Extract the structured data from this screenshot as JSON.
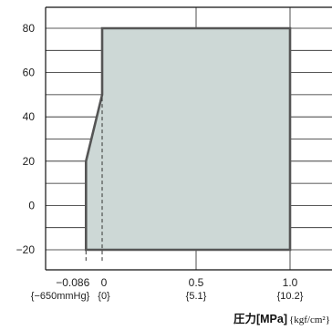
{
  "chart_data": {
    "type": "area",
    "title": "",
    "xlabel": "",
    "ylabel": "",
    "x_axis_label": {
      "main": "圧力[MPa]",
      "unit": "{kgf/cm²}"
    },
    "xlim": [
      -0.1,
      1.1
    ],
    "ylim": [
      -25,
      85
    ],
    "grid": true,
    "legend": "none",
    "y_ticks": [
      {
        "value": -20,
        "label": "−20"
      },
      {
        "value": 0,
        "label": "0"
      },
      {
        "value": 20,
        "label": "20"
      },
      {
        "value": 40,
        "label": "40"
      },
      {
        "value": 60,
        "label": "60"
      },
      {
        "value": 80,
        "label": "80"
      }
    ],
    "x_ticks": [
      {
        "value": -0.086,
        "label": "−0.086",
        "sublabel": "{−650mmHg}"
      },
      {
        "value": 0,
        "label": "0",
        "sublabel": "{0}"
      },
      {
        "value": 0.5,
        "label": "0.5",
        "sublabel": "{5.1}"
      },
      {
        "value": 1.0,
        "label": "1.0",
        "sublabel": "{10.2}"
      }
    ],
    "region": {
      "points": [
        {
          "x": -0.086,
          "y": -20
        },
        {
          "x": -0.086,
          "y": 20
        },
        {
          "x": 0,
          "y": 50
        },
        {
          "x": 0,
          "y": 80
        },
        {
          "x": 1.0,
          "y": 80
        },
        {
          "x": 1.0,
          "y": -20
        }
      ],
      "fill_color": "#cdd8d6",
      "stroke_color": "#555555"
    },
    "reference_lines": [
      {
        "x": -0.086,
        "y_from": -25,
        "y_to": -20,
        "style": "dashed"
      },
      {
        "x": 0,
        "y_from": -25,
        "y_to": 50,
        "style": "dashed"
      }
    ]
  }
}
